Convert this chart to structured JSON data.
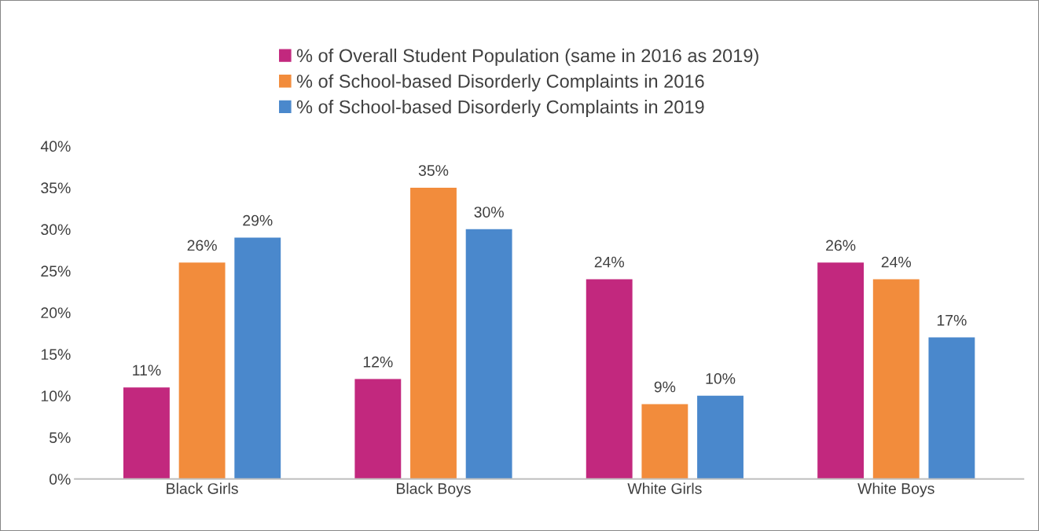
{
  "chart_data": {
    "type": "bar",
    "categories": [
      "Black Girls",
      "Black Boys",
      "White Girls",
      "White Boys"
    ],
    "series": [
      {
        "name": "% of Overall Student Population (same in 2016 as 2019)",
        "color": "#c2287e",
        "values": [
          11,
          12,
          24,
          26
        ],
        "value_labels": [
          "11%",
          "12%",
          "24%",
          "26%"
        ]
      },
      {
        "name": "% of School-based Disorderly Complaints in 2016",
        "color": "#f28c3c",
        "values": [
          26,
          35,
          9,
          24
        ],
        "value_labels": [
          "26%",
          "35%",
          "9%",
          "24%"
        ]
      },
      {
        "name": "% of School-based Disorderly Complaints in 2019",
        "color": "#4a88cc",
        "values": [
          29,
          30,
          10,
          17
        ],
        "value_labels": [
          "29%",
          "30%",
          "10%",
          "17%"
        ]
      }
    ],
    "ylim": [
      0,
      40
    ],
    "yticks": [
      {
        "value": 0,
        "label": "0%"
      },
      {
        "value": 5,
        "label": "5%"
      },
      {
        "value": 10,
        "label": "10%"
      },
      {
        "value": 15,
        "label": "15%"
      },
      {
        "value": 20,
        "label": "20%"
      },
      {
        "value": 25,
        "label": "25%"
      },
      {
        "value": 30,
        "label": "30%"
      },
      {
        "value": 35,
        "label": "35%"
      },
      {
        "value": 40,
        "label": "40%"
      }
    ],
    "grid": false,
    "legend": "top"
  }
}
